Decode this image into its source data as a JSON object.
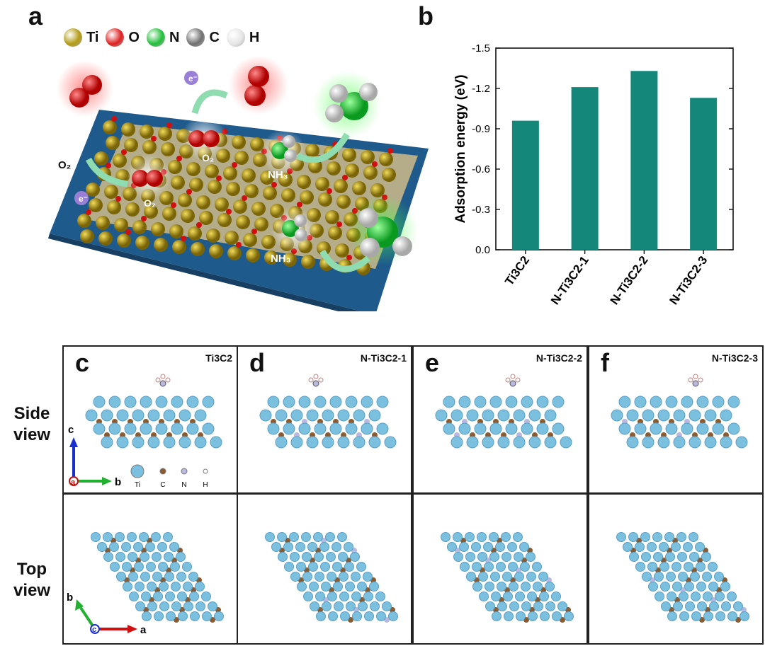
{
  "panels": {
    "a": "a",
    "b": "b",
    "c": "c",
    "d": "d",
    "e": "e",
    "f": "f"
  },
  "legend_a": [
    {
      "label": "Ti",
      "color": "#b39a14"
    },
    {
      "label": "O",
      "color": "#e02020"
    },
    {
      "label": "N",
      "color": "#22c03a"
    },
    {
      "label": "C",
      "color": "#707070"
    },
    {
      "label": "H",
      "color": "#e6e6e6"
    }
  ],
  "scheme_labels": {
    "o2_left": "O2",
    "o2_mid": "O2",
    "o2_small": "O2",
    "nh3_top": "NH3",
    "nh3_bottom": "NH3",
    "e": "e-"
  },
  "chart_data": {
    "type": "bar",
    "categories": [
      "Ti3C2",
      "N-Ti3C2-1",
      "N-Ti3C2-2",
      "N-Ti3C2-3"
    ],
    "values": [
      -0.96,
      -1.21,
      -1.33,
      -1.13
    ],
    "ylabel": "Adsorption energy (eV)",
    "ylim": [
      0.0,
      -1.5
    ],
    "yticks": [
      "-1.5",
      "-1.2",
      "-0.9",
      "-0.6",
      "-0.3",
      "0.0"
    ],
    "bar_color": "#14877a"
  },
  "structures": {
    "side_label": "Side view",
    "top_label": "Top view",
    "columns": [
      {
        "letter": "c",
        "title": "Ti3C2"
      },
      {
        "letter": "d",
        "title": "N-Ti3C2-1"
      },
      {
        "letter": "e",
        "title": "N-Ti3C2-2"
      },
      {
        "letter": "f",
        "title": "N-Ti3C2-3"
      }
    ],
    "axes_side": {
      "c": "c",
      "b": "b",
      "a": "a"
    },
    "axes_top": {
      "b": "b",
      "a": "a",
      "c": "c"
    },
    "atom_legend": [
      "Ti",
      "C",
      "N",
      "H"
    ]
  }
}
